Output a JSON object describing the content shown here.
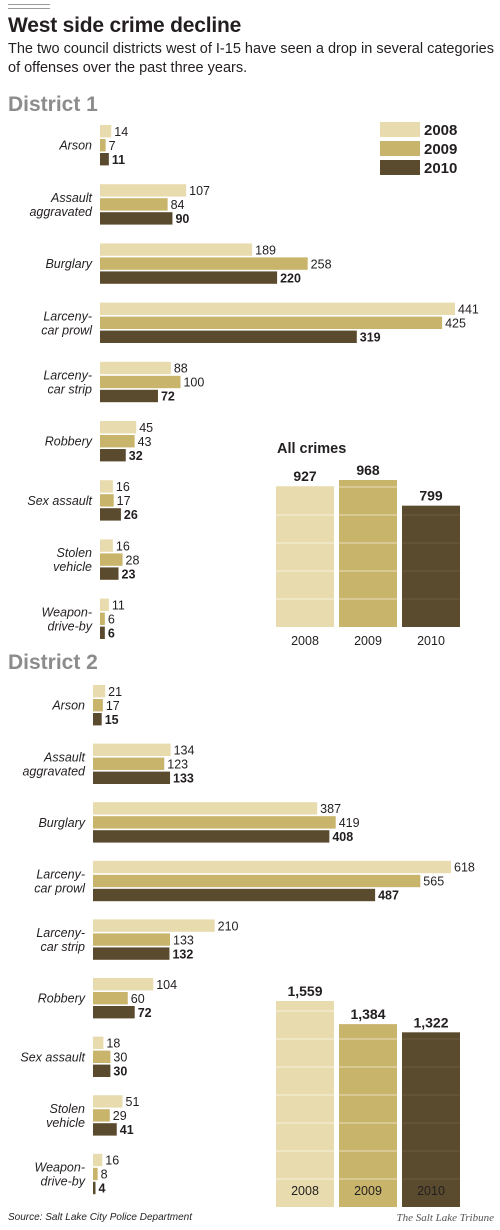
{
  "title": "West side crime decline",
  "subtitle": "The two council districts west of I-15 have seen a drop in several categories of offenses over the past three years.",
  "source": "Source: Salt Lake City Police Department",
  "credit": "The Salt Lake Tribune",
  "colors": {
    "2008": "#e8dcae",
    "2009": "#c8b46b",
    "2010": "#5b4b2e",
    "heading": "#8c8c8c"
  },
  "legend": [
    "2008",
    "2009",
    "2010"
  ],
  "chart_data": [
    {
      "type": "bar",
      "title": "District 1",
      "orientation": "horizontal",
      "categories": [
        [
          "Arson"
        ],
        [
          "Assault",
          "aggravated"
        ],
        [
          "Burglary"
        ],
        [
          "Larceny-",
          "car prowl"
        ],
        [
          "Larceny-",
          "car strip"
        ],
        [
          "Robbery"
        ],
        [
          "Sex assault"
        ],
        [
          "Stolen",
          "vehicle"
        ],
        [
          "Weapon-",
          "drive-by"
        ]
      ],
      "series": [
        {
          "name": "2008",
          "values": [
            14,
            107,
            189,
            441,
            88,
            45,
            16,
            16,
            11
          ]
        },
        {
          "name": "2009",
          "values": [
            7,
            84,
            258,
            425,
            100,
            43,
            17,
            28,
            6
          ]
        },
        {
          "name": "2010",
          "values": [
            11,
            90,
            220,
            319,
            72,
            32,
            26,
            23,
            6
          ]
        }
      ],
      "legend_position": "top-right",
      "totals": {
        "title": "All crimes",
        "type": "bar",
        "categories": [
          "2008",
          "2009",
          "2010"
        ],
        "values": [
          927,
          968,
          799
        ],
        "labels": [
          "927",
          "968",
          "799"
        ]
      }
    },
    {
      "type": "bar",
      "title": "District 2",
      "orientation": "horizontal",
      "categories": [
        [
          "Arson"
        ],
        [
          "Assault",
          "aggravated"
        ],
        [
          "Burglary"
        ],
        [
          "Larceny-",
          "car prowl"
        ],
        [
          "Larceny-",
          "car strip"
        ],
        [
          "Robbery"
        ],
        [
          "Sex assault"
        ],
        [
          "Stolen",
          "vehicle"
        ],
        [
          "Weapon-",
          "drive-by"
        ]
      ],
      "series": [
        {
          "name": "2008",
          "values": [
            21,
            134,
            387,
            618,
            210,
            104,
            18,
            51,
            16
          ]
        },
        {
          "name": "2009",
          "values": [
            17,
            123,
            419,
            565,
            133,
            60,
            30,
            29,
            8
          ]
        },
        {
          "name": "2010",
          "values": [
            15,
            133,
            408,
            487,
            132,
            72,
            30,
            41,
            4
          ]
        }
      ],
      "totals": {
        "title": "",
        "type": "bar",
        "categories": [
          "2008",
          "2009",
          "2010"
        ],
        "values": [
          1559,
          1384,
          1322
        ],
        "labels": [
          "1,559",
          "1,384",
          "1,322"
        ]
      }
    }
  ]
}
